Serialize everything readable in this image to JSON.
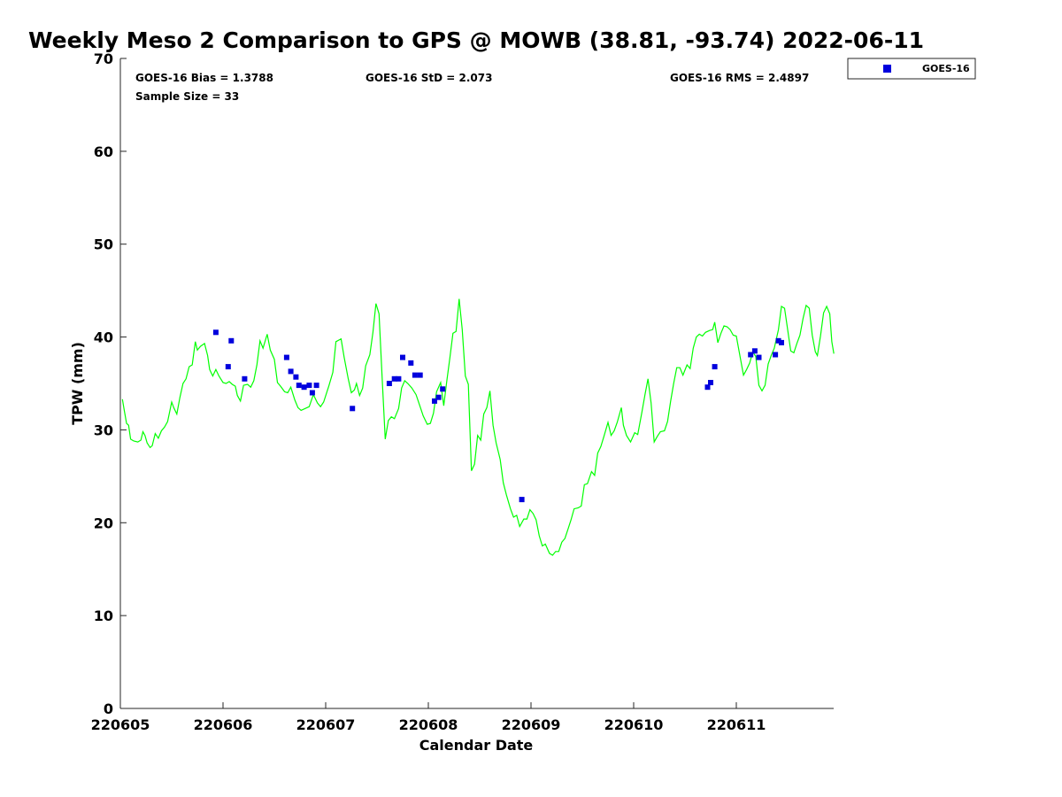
{
  "chart_data": {
    "type": "scatter",
    "title": "Weekly Meso 2 Comparison to GPS @ MOWB (38.81, -93.74) 2022-06-11",
    "xlabel": "Calendar Date",
    "ylabel": "TPW (mm)",
    "ylim": [
      0,
      70
    ],
    "xlim": [
      0,
      6.95
    ],
    "x_tick_values": [
      0,
      1,
      2,
      3,
      4,
      5,
      6
    ],
    "x_tick_labels": [
      "220605",
      "220606",
      "220607",
      "220608",
      "220609",
      "220610",
      "220611"
    ],
    "y_tick_values": [
      0,
      10,
      20,
      30,
      40,
      50,
      60,
      70
    ],
    "y_tick_labels": [
      "0",
      "10",
      "20",
      "30",
      "40",
      "50",
      "60",
      "70"
    ],
    "grid": false,
    "legend_placement": "top-right outside",
    "stats": {
      "bias": "GOES-16 Bias = 1.3788",
      "std": "GOES-16 StD = 2.073",
      "rms": "GOES-16 RMS = 2.4897",
      "sample": "Sample Size = 33"
    },
    "colors": {
      "gps": "#00ff00",
      "goes": "#0000dd"
    },
    "series": [
      {
        "name": "GOES-16",
        "points": [
          [
            0.93,
            40.5
          ],
          [
            1.05,
            36.8
          ],
          [
            1.08,
            39.6
          ],
          [
            1.21,
            35.5
          ],
          [
            1.62,
            37.8
          ],
          [
            1.66,
            36.3
          ],
          [
            1.71,
            35.7
          ],
          [
            1.74,
            34.8
          ],
          [
            1.79,
            34.6
          ],
          [
            1.84,
            34.8
          ],
          [
            1.87,
            34.0
          ],
          [
            1.91,
            34.8
          ],
          [
            2.26,
            32.3
          ],
          [
            2.62,
            35.0
          ],
          [
            2.67,
            35.5
          ],
          [
            2.71,
            35.5
          ],
          [
            2.75,
            37.8
          ],
          [
            2.83,
            37.2
          ],
          [
            2.87,
            35.9
          ],
          [
            2.92,
            35.9
          ],
          [
            3.06,
            33.1
          ],
          [
            3.1,
            33.5
          ],
          [
            3.14,
            34.4
          ],
          [
            3.91,
            22.5
          ],
          [
            5.72,
            34.6
          ],
          [
            5.75,
            35.1
          ],
          [
            5.79,
            36.8
          ],
          [
            6.14,
            38.1
          ],
          [
            6.18,
            38.5
          ],
          [
            6.22,
            37.8
          ],
          [
            6.38,
            38.1
          ],
          [
            6.41,
            39.6
          ],
          [
            6.44,
            39.4
          ]
        ]
      },
      {
        "line_points": [
          [
            0.02,
            33.3
          ],
          [
            0.04,
            32.0
          ],
          [
            0.06,
            30.7
          ],
          [
            0.08,
            30.5
          ],
          [
            0.1,
            29.0
          ],
          [
            0.13,
            28.8
          ],
          [
            0.17,
            28.7
          ],
          [
            0.2,
            28.9
          ],
          [
            0.22,
            29.8
          ],
          [
            0.24,
            29.4
          ],
          [
            0.26,
            28.6
          ],
          [
            0.29,
            28.1
          ],
          [
            0.31,
            28.3
          ],
          [
            0.34,
            29.6
          ],
          [
            0.37,
            29.1
          ],
          [
            0.4,
            29.9
          ],
          [
            0.43,
            30.3
          ],
          [
            0.46,
            30.9
          ],
          [
            0.5,
            33.0
          ],
          [
            0.52,
            32.4
          ],
          [
            0.55,
            31.7
          ],
          [
            0.58,
            33.5
          ],
          [
            0.61,
            35.0
          ],
          [
            0.64,
            35.5
          ],
          [
            0.67,
            36.8
          ],
          [
            0.7,
            37.0
          ],
          [
            0.73,
            39.5
          ],
          [
            0.75,
            38.6
          ],
          [
            0.78,
            39.0
          ],
          [
            0.82,
            39.3
          ],
          [
            0.85,
            38.0
          ],
          [
            0.87,
            36.5
          ],
          [
            0.9,
            35.8
          ],
          [
            0.93,
            36.5
          ],
          [
            0.96,
            35.8
          ],
          [
            1.0,
            35.1
          ],
          [
            1.03,
            35.0
          ],
          [
            1.06,
            35.2
          ],
          [
            1.09,
            34.9
          ],
          [
            1.12,
            34.7
          ],
          [
            1.14,
            33.7
          ],
          [
            1.17,
            33.1
          ],
          [
            1.2,
            34.8
          ],
          [
            1.24,
            34.9
          ],
          [
            1.27,
            34.6
          ],
          [
            1.3,
            35.3
          ],
          [
            1.33,
            37.0
          ],
          [
            1.36,
            39.6
          ],
          [
            1.39,
            38.8
          ],
          [
            1.43,
            40.3
          ],
          [
            1.46,
            38.6
          ],
          [
            1.5,
            37.6
          ],
          [
            1.53,
            35.1
          ],
          [
            1.56,
            34.7
          ],
          [
            1.6,
            34.1
          ],
          [
            1.63,
            34.0
          ],
          [
            1.66,
            34.6
          ],
          [
            1.7,
            33.2
          ],
          [
            1.73,
            32.4
          ],
          [
            1.76,
            32.1
          ],
          [
            1.8,
            32.3
          ],
          [
            1.84,
            32.5
          ],
          [
            1.88,
            33.8
          ],
          [
            1.92,
            32.9
          ],
          [
            1.95,
            32.5
          ],
          [
            1.98,
            33.0
          ],
          [
            2.03,
            34.7
          ],
          [
            2.07,
            36.2
          ],
          [
            2.1,
            39.5
          ],
          [
            2.15,
            39.8
          ],
          [
            2.18,
            37.8
          ],
          [
            2.22,
            35.5
          ],
          [
            2.25,
            34.0
          ],
          [
            2.28,
            34.3
          ],
          [
            2.3,
            35.0
          ],
          [
            2.33,
            33.7
          ],
          [
            2.36,
            34.5
          ],
          [
            2.39,
            36.9
          ],
          [
            2.43,
            38.1
          ],
          [
            2.46,
            40.5
          ],
          [
            2.49,
            43.6
          ],
          [
            2.52,
            42.5
          ],
          [
            2.55,
            35.6
          ],
          [
            2.58,
            29.0
          ],
          [
            2.61,
            31.0
          ],
          [
            2.64,
            31.4
          ],
          [
            2.67,
            31.2
          ],
          [
            2.71,
            32.3
          ],
          [
            2.74,
            34.5
          ],
          [
            2.77,
            35.3
          ],
          [
            2.8,
            35.0
          ],
          [
            2.84,
            34.5
          ],
          [
            2.88,
            33.8
          ],
          [
            2.92,
            32.5
          ],
          [
            2.95,
            31.5
          ],
          [
            2.99,
            30.6
          ],
          [
            3.02,
            30.7
          ],
          [
            3.05,
            31.8
          ],
          [
            3.08,
            34.1
          ],
          [
            3.12,
            35.1
          ],
          [
            3.15,
            32.6
          ],
          [
            3.18,
            35.3
          ],
          [
            3.21,
            37.8
          ],
          [
            3.24,
            40.4
          ],
          [
            3.27,
            40.6
          ],
          [
            3.3,
            44.1
          ],
          [
            3.33,
            40.8
          ],
          [
            3.36,
            35.8
          ],
          [
            3.39,
            34.9
          ],
          [
            3.42,
            25.6
          ],
          [
            3.45,
            26.3
          ],
          [
            3.48,
            29.4
          ],
          [
            3.51,
            28.9
          ],
          [
            3.54,
            31.7
          ],
          [
            3.57,
            32.4
          ],
          [
            3.6,
            34.2
          ],
          [
            3.63,
            30.5
          ],
          [
            3.66,
            28.6
          ],
          [
            3.7,
            26.8
          ],
          [
            3.73,
            24.3
          ],
          [
            3.76,
            23.0
          ],
          [
            3.8,
            21.5
          ],
          [
            3.83,
            20.6
          ],
          [
            3.86,
            20.8
          ],
          [
            3.89,
            19.6
          ],
          [
            3.93,
            20.4
          ],
          [
            3.96,
            20.4
          ],
          [
            3.99,
            21.4
          ],
          [
            4.02,
            21.0
          ],
          [
            4.05,
            20.3
          ],
          [
            4.08,
            18.6
          ],
          [
            4.11,
            17.5
          ],
          [
            4.14,
            17.7
          ],
          [
            4.18,
            16.7
          ],
          [
            4.21,
            16.5
          ],
          [
            4.24,
            16.9
          ],
          [
            4.27,
            16.9
          ],
          [
            4.3,
            17.9
          ],
          [
            4.33,
            18.3
          ],
          [
            4.36,
            19.3
          ],
          [
            4.39,
            20.3
          ],
          [
            4.42,
            21.5
          ],
          [
            4.46,
            21.6
          ],
          [
            4.49,
            21.8
          ],
          [
            4.52,
            24.1
          ],
          [
            4.55,
            24.2
          ],
          [
            4.59,
            25.5
          ],
          [
            4.62,
            25.1
          ],
          [
            4.65,
            27.5
          ],
          [
            4.68,
            28.2
          ],
          [
            4.71,
            29.3
          ],
          [
            4.75,
            30.8
          ],
          [
            4.78,
            29.4
          ],
          [
            4.81,
            29.9
          ],
          [
            4.84,
            30.8
          ],
          [
            4.88,
            32.4
          ],
          [
            4.9,
            30.5
          ],
          [
            4.93,
            29.4
          ],
          [
            4.97,
            28.7
          ],
          [
            5.01,
            29.7
          ],
          [
            5.04,
            29.5
          ],
          [
            5.08,
            31.9
          ],
          [
            5.11,
            33.8
          ],
          [
            5.14,
            35.5
          ],
          [
            5.17,
            32.9
          ],
          [
            5.2,
            28.7
          ],
          [
            5.23,
            29.3
          ],
          [
            5.26,
            29.8
          ],
          [
            5.3,
            29.9
          ],
          [
            5.33,
            30.9
          ],
          [
            5.36,
            33.1
          ],
          [
            5.39,
            35.0
          ],
          [
            5.42,
            36.7
          ],
          [
            5.45,
            36.7
          ],
          [
            5.48,
            35.9
          ],
          [
            5.52,
            37.0
          ],
          [
            5.55,
            36.6
          ],
          [
            5.58,
            38.8
          ],
          [
            5.61,
            40.0
          ],
          [
            5.64,
            40.3
          ],
          [
            5.67,
            40.1
          ],
          [
            5.7,
            40.5
          ],
          [
            5.74,
            40.7
          ],
          [
            5.77,
            40.8
          ],
          [
            5.79,
            41.6
          ],
          [
            5.82,
            39.4
          ],
          [
            5.85,
            40.4
          ],
          [
            5.88,
            41.2
          ],
          [
            5.91,
            41.1
          ],
          [
            5.94,
            40.8
          ],
          [
            5.97,
            40.2
          ],
          [
            6.0,
            40.1
          ],
          [
            6.04,
            37.7
          ],
          [
            6.07,
            35.9
          ],
          [
            6.1,
            36.5
          ],
          [
            6.13,
            37.2
          ],
          [
            6.16,
            38.4
          ],
          [
            6.19,
            37.9
          ],
          [
            6.22,
            34.8
          ],
          [
            6.25,
            34.2
          ],
          [
            6.28,
            34.8
          ],
          [
            6.31,
            37.1
          ],
          [
            6.34,
            38.0
          ],
          [
            6.37,
            38.8
          ],
          [
            6.41,
            40.8
          ],
          [
            6.44,
            43.3
          ],
          [
            6.47,
            43.1
          ],
          [
            6.5,
            40.8
          ],
          [
            6.53,
            38.5
          ],
          [
            6.56,
            38.3
          ],
          [
            6.59,
            39.3
          ],
          [
            6.62,
            40.2
          ],
          [
            6.65,
            42.0
          ],
          [
            6.68,
            43.4
          ],
          [
            6.71,
            43.1
          ],
          [
            6.74,
            40.2
          ],
          [
            6.77,
            38.4
          ],
          [
            6.79,
            38.0
          ],
          [
            6.82,
            40.1
          ],
          [
            6.85,
            42.6
          ],
          [
            6.88,
            43.3
          ],
          [
            6.91,
            42.5
          ],
          [
            6.93,
            39.5
          ],
          [
            6.95,
            38.2
          ]
        ]
      }
    ]
  }
}
